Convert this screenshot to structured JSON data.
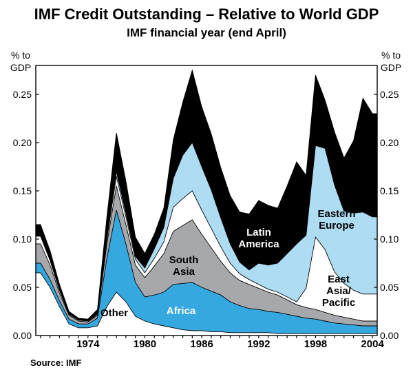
{
  "page": {
    "background": "#FFFFFF",
    "source_label": "Source: IMF"
  },
  "chart_data": {
    "type": "area",
    "stacked": true,
    "title": "IMF Credit Outstanding – Relative to World GDP",
    "subtitle": "IMF financial year (end April)",
    "ylabel": "% to GDP",
    "ylabel_lines": [
      "% to",
      "GDP"
    ],
    "xlabel": "",
    "grid": false,
    "legend_position": "labels-inside-plot",
    "xlim": [
      1968.5,
      2004.5
    ],
    "ylim": [
      0,
      0.28
    ],
    "xticks": [
      1974,
      1980,
      1986,
      1992,
      1998,
      2004
    ],
    "yticks": [
      0.0,
      0.05,
      0.1,
      0.15,
      0.2,
      0.25
    ],
    "ytick_labels": [
      "0.00",
      "0.05",
      "0.10",
      "0.15",
      "0.20",
      "0.25"
    ],
    "frame_color": "#000000",
    "boundary_line_color": "#000000",
    "x": [
      1969,
      1970,
      1971,
      1972,
      1973,
      1974,
      1975,
      1976,
      1977,
      1978,
      1979,
      1980,
      1981,
      1982,
      1983,
      1984,
      1985,
      1986,
      1987,
      1988,
      1989,
      1990,
      1991,
      1992,
      1993,
      1994,
      1995,
      1996,
      1997,
      1998,
      1999,
      2000,
      2001,
      2002,
      2003,
      2004
    ],
    "series": [
      {
        "id": "other",
        "name": "Other",
        "color": "#FFFFFF",
        "values": [
          0.065,
          0.05,
          0.03,
          0.012,
          0.008,
          0.008,
          0.01,
          0.03,
          0.045,
          0.035,
          0.02,
          0.015,
          0.012,
          0.01,
          0.008,
          0.006,
          0.005,
          0.005,
          0.004,
          0.004,
          0.003,
          0.003,
          0.003,
          0.003,
          0.003,
          0.002,
          0.002,
          0.002,
          0.002,
          0.002,
          0.002,
          0.002,
          0.002,
          0.002,
          0.002,
          0.002
        ]
      },
      {
        "id": "africa",
        "name": "Africa",
        "color": "#35A8DF",
        "values": [
          0.01,
          0.008,
          0.006,
          0.005,
          0.004,
          0.004,
          0.008,
          0.05,
          0.085,
          0.06,
          0.035,
          0.025,
          0.03,
          0.035,
          0.045,
          0.048,
          0.05,
          0.045,
          0.042,
          0.038,
          0.032,
          0.028,
          0.025,
          0.024,
          0.022,
          0.022,
          0.02,
          0.018,
          0.016,
          0.015,
          0.013,
          0.011,
          0.01,
          0.009,
          0.008,
          0.008
        ]
      },
      {
        "id": "south-asia",
        "name": "South Asia",
        "color": "#A6A8AB",
        "values": [
          0.02,
          0.015,
          0.008,
          0.004,
          0.003,
          0.002,
          0.003,
          0.015,
          0.025,
          0.02,
          0.018,
          0.02,
          0.03,
          0.04,
          0.055,
          0.06,
          0.065,
          0.055,
          0.045,
          0.035,
          0.03,
          0.026,
          0.025,
          0.022,
          0.02,
          0.018,
          0.015,
          0.012,
          0.011,
          0.01,
          0.009,
          0.008,
          0.007,
          0.006,
          0.005,
          0.005
        ]
      },
      {
        "id": "east-asia-pacific",
        "name": "East Asia/Pacific",
        "color": "#FFFFFF",
        "values": [
          0.008,
          0.005,
          0.003,
          0.001,
          0.001,
          0.001,
          0.001,
          0.005,
          0.01,
          0.008,
          0.006,
          0.005,
          0.008,
          0.012,
          0.025,
          0.028,
          0.03,
          0.025,
          0.02,
          0.015,
          0.01,
          0.007,
          0.005,
          0.004,
          0.003,
          0.003,
          0.003,
          0.003,
          0.02,
          0.075,
          0.065,
          0.045,
          0.035,
          0.03,
          0.028,
          0.028
        ]
      },
      {
        "id": "eastern-europe",
        "name": "Eastern Europe",
        "color": "#AEDCF2",
        "values": [
          0.0,
          0.0,
          0.0,
          0.0,
          0.0,
          0.0,
          0.001,
          0.003,
          0.005,
          0.004,
          0.003,
          0.005,
          0.01,
          0.015,
          0.03,
          0.045,
          0.05,
          0.045,
          0.04,
          0.03,
          0.02,
          0.012,
          0.01,
          0.022,
          0.025,
          0.03,
          0.045,
          0.06,
          0.055,
          0.095,
          0.105,
          0.09,
          0.075,
          0.08,
          0.085,
          0.08
        ]
      },
      {
        "id": "latin-america",
        "name": "Latin America",
        "color": "#000000",
        "values": [
          0.012,
          0.01,
          0.006,
          0.003,
          0.002,
          0.002,
          0.004,
          0.02,
          0.04,
          0.033,
          0.02,
          0.015,
          0.015,
          0.02,
          0.04,
          0.055,
          0.075,
          0.062,
          0.058,
          0.052,
          0.05,
          0.052,
          0.058,
          0.065,
          0.062,
          0.057,
          0.07,
          0.085,
          0.062,
          0.073,
          0.05,
          0.055,
          0.055,
          0.075,
          0.118,
          0.107
        ]
      }
    ],
    "area_labels": [
      {
        "id": "other-label",
        "lines": [
          "Other"
        ],
        "color": "#000000",
        "cx": 166,
        "top": 447
      },
      {
        "id": "africa-label",
        "lines": [
          "Africa"
        ],
        "color": "#FFFFFF",
        "cx": 263,
        "top": 444
      },
      {
        "id": "south-asia-label",
        "lines": [
          "South",
          "Asia"
        ],
        "color": "#000000",
        "cx": 267,
        "top": 370
      },
      {
        "id": "latin-america-label",
        "lines": [
          "Latin",
          "America"
        ],
        "color": "#FFFFFF",
        "cx": 376,
        "top": 330
      },
      {
        "id": "eastern-europe-label",
        "lines": [
          "Eastern",
          "Europe"
        ],
        "color": "#000000",
        "cx": 489,
        "top": 303
      },
      {
        "id": "east-asia-pacific-label",
        "lines": [
          "East",
          "Asia/",
          "Pacific"
        ],
        "color": "#000000",
        "cx": 492,
        "top": 398
      }
    ]
  }
}
